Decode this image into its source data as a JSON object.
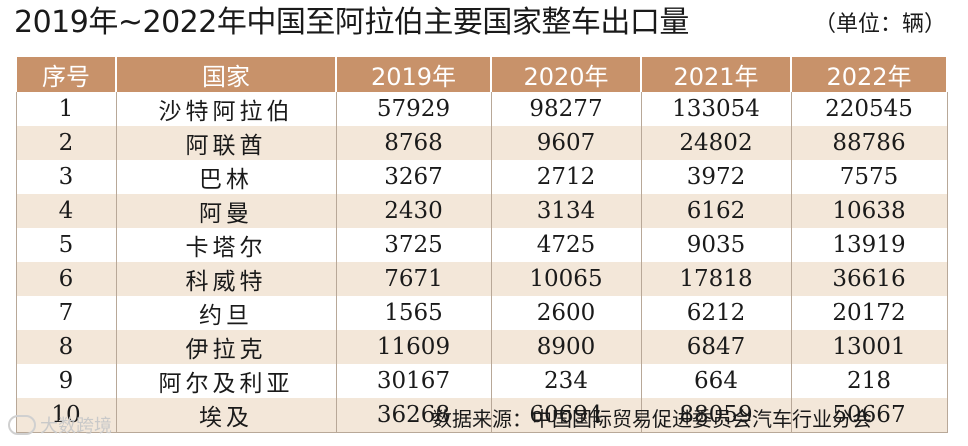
{
  "header": {
    "title": "2019年~2022年中国至阿拉伯主要国家整车出口量",
    "unit": "（单位：辆）"
  },
  "table": {
    "columns": [
      "序号",
      "国家",
      "2019年",
      "2020年",
      "2021年",
      "2022年"
    ],
    "rows": [
      [
        1,
        "沙特阿拉伯",
        57929,
        98277,
        133054,
        220545
      ],
      [
        2,
        "阿联酋",
        8768,
        9607,
        24802,
        88786
      ],
      [
        3,
        "巴林",
        3267,
        2712,
        3972,
        7575
      ],
      [
        4,
        "阿曼",
        2430,
        3134,
        6162,
        10638
      ],
      [
        5,
        "卡塔尔",
        3725,
        4725,
        9035,
        13919
      ],
      [
        6,
        "科威特",
        7671,
        10065,
        17818,
        36616
      ],
      [
        7,
        "约旦",
        1565,
        2600,
        6212,
        20172
      ],
      [
        8,
        "伊拉克",
        11609,
        8900,
        6847,
        13001
      ],
      [
        9,
        "阿尔及利亚",
        30167,
        234,
        664,
        218
      ],
      [
        10,
        "埃及",
        36268,
        60694,
        88059,
        50667
      ]
    ]
  },
  "footer": {
    "source": "数据来源：中国国际贸易促进委员会汽车行业分会",
    "watermark": "大数跨境"
  }
}
